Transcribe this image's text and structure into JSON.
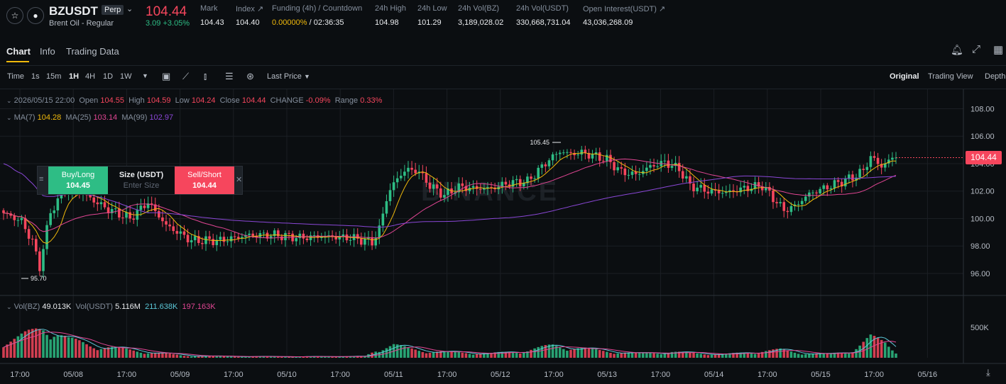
{
  "header": {
    "symbol": "BZUSDT",
    "badge": "Perp",
    "subtitle": "Brent Oil - Regular",
    "last_price": "104.44",
    "change": "3.09 +3.05%",
    "stats": [
      {
        "label": "Mark",
        "value": "104.43"
      },
      {
        "label": "Index ↗",
        "value": "104.40"
      },
      {
        "label": "Funding (4h) / Countdown",
        "value_a": "0.00000%",
        "value_b": " / 02:36:35"
      },
      {
        "label": "24h High",
        "value": "104.98"
      },
      {
        "label": "24h Low",
        "value": "101.29"
      },
      {
        "label": "24h Vol(BZ)",
        "value": "3,189,028.02"
      },
      {
        "label": "24h Vol(USDT)",
        "value": "330,668,731.04"
      },
      {
        "label": "Open Interest(USDT) ↗",
        "value": "43,036,268.09"
      }
    ]
  },
  "tabs": [
    "Chart",
    "Info",
    "Trading Data"
  ],
  "toolbar": {
    "intervals": [
      "Time",
      "1s",
      "15m",
      "1H",
      "4H",
      "1D",
      "1W"
    ],
    "active_interval": "1H",
    "price_type": "Last Price",
    "views": [
      "Original",
      "Trading View",
      "Depth"
    ]
  },
  "legend": {
    "date": "2026/05/15 22:00",
    "open_label": "Open",
    "open": "104.55",
    "high_label": "High",
    "high": "104.59",
    "low_label": "Low",
    "low": "104.24",
    "close_label": "Close",
    "close": "104.44",
    "change_label": "CHANGE",
    "change": "-0.09%",
    "range_label": "Range",
    "range": "0.33%",
    "ma7_label": "MA(7)",
    "ma7": "104.28",
    "ma25_label": "MA(25)",
    "ma25": "103.14",
    "ma99_label": "MA(99)",
    "ma99": "102.97",
    "vol_label": "Vol(BZ)",
    "vol": "49.013K",
    "volusdt_label": "Vol(USDT)",
    "volusdt": "5.116M",
    "vma1": "211.638K",
    "vma2": "197.163K"
  },
  "order": {
    "buy_label": "Buy/Long",
    "buy_price": "104.45",
    "size_label": "Size (USDT)",
    "size_placeholder": "Enter Size",
    "sell_label": "Sell/Short",
    "sell_price": "104.44"
  },
  "price_tag": "104.44",
  "watermark": "BINANCE",
  "colors": {
    "up": "#2ebd85",
    "down": "#f6465d",
    "ma7": "#f0b90b",
    "ma25": "#e24694",
    "ma99": "#8a47d6",
    "accent": "#f0b90b"
  },
  "chart_data": {
    "type": "candlestick",
    "y_ticks": [
      "108.00",
      "106.00",
      "104.00",
      "102.00",
      "100.00",
      "98.00",
      "96.00"
    ],
    "ylim": [
      94.5,
      108.8
    ],
    "vol_ticks": [
      "500K"
    ],
    "x_ticks": [
      "17:00",
      "05/08",
      "17:00",
      "05/09",
      "17:00",
      "05/10",
      "17:00",
      "05/11",
      "17:00",
      "05/12",
      "17:00",
      "05/13",
      "17:00",
      "05/14",
      "17:00",
      "05/15",
      "17:00",
      "05/16"
    ],
    "high_mark": "105.45",
    "low_mark": "95.70",
    "anchors": [
      [
        0,
        100.4
      ],
      [
        5,
        99.8
      ],
      [
        8,
        98.3
      ],
      [
        10,
        96.5
      ],
      [
        13,
        100.5
      ],
      [
        17,
        102.0
      ],
      [
        22,
        101.8
      ],
      [
        28,
        100.8
      ],
      [
        35,
        100.0
      ],
      [
        40,
        101.2
      ],
      [
        45,
        99.5
      ],
      [
        52,
        98.4
      ],
      [
        60,
        98.4
      ],
      [
        68,
        98.8
      ],
      [
        75,
        98.8
      ],
      [
        82,
        98.6
      ],
      [
        88,
        98.7
      ],
      [
        96,
        98.6
      ],
      [
        102,
        98.3
      ],
      [
        104,
        99.2
      ],
      [
        106,
        101.5
      ],
      [
        109,
        103.0
      ],
      [
        112,
        103.6
      ],
      [
        115,
        103.4
      ],
      [
        118,
        102.4
      ],
      [
        122,
        101.7
      ],
      [
        126,
        102.3
      ],
      [
        130,
        102.2
      ],
      [
        135,
        102.2
      ],
      [
        140,
        102.6
      ],
      [
        145,
        102.7
      ],
      [
        148,
        103.5
      ],
      [
        151,
        104.3
      ],
      [
        154,
        104.9
      ],
      [
        157,
        104.7
      ],
      [
        160,
        104.8
      ],
      [
        163,
        104.6
      ],
      [
        167,
        104.3
      ],
      [
        171,
        103.4
      ],
      [
        175,
        103.2
      ],
      [
        179,
        103.8
      ],
      [
        183,
        104.1
      ],
      [
        187,
        103.6
      ],
      [
        190,
        102.4
      ],
      [
        195,
        102.0
      ],
      [
        200,
        101.9
      ],
      [
        205,
        102.2
      ],
      [
        210,
        102.4
      ],
      [
        213,
        101.5
      ],
      [
        216,
        100.6
      ],
      [
        219,
        100.9
      ],
      [
        223,
        101.8
      ],
      [
        227,
        102.2
      ],
      [
        231,
        102.6
      ],
      [
        235,
        103.0
      ],
      [
        238,
        103.5
      ],
      [
        240,
        104.5
      ],
      [
        243,
        103.8
      ],
      [
        246,
        104.4
      ],
      [
        247,
        104.44
      ]
    ],
    "volume_profile": [
      [
        0,
        0.45
      ],
      [
        4,
        0.55
      ],
      [
        8,
        0.7
      ],
      [
        11,
        0.85
      ],
      [
        14,
        0.75
      ],
      [
        18,
        0.5
      ],
      [
        24,
        0.35
      ],
      [
        30,
        0.28
      ],
      [
        36,
        0.2
      ],
      [
        42,
        0.14
      ],
      [
        50,
        0.06
      ],
      [
        60,
        0.04
      ],
      [
        80,
        0.03
      ],
      [
        100,
        0.04
      ],
      [
        103,
        0.22
      ],
      [
        108,
        0.35
      ],
      [
        112,
        0.25
      ],
      [
        118,
        0.18
      ],
      [
        125,
        0.15
      ],
      [
        135,
        0.12
      ],
      [
        145,
        0.2
      ],
      [
        152,
        0.34
      ],
      [
        158,
        0.28
      ],
      [
        165,
        0.2
      ],
      [
        175,
        0.12
      ],
      [
        185,
        0.16
      ],
      [
        190,
        0.13
      ],
      [
        200,
        0.1
      ],
      [
        210,
        0.18
      ],
      [
        215,
        0.22
      ],
      [
        220,
        0.14
      ],
      [
        228,
        0.1
      ],
      [
        235,
        0.2
      ],
      [
        240,
        0.55
      ],
      [
        244,
        0.42
      ],
      [
        247,
        0.18
      ]
    ]
  }
}
